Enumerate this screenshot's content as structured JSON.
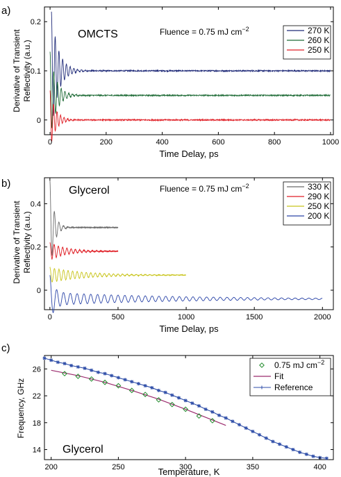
{
  "chart_data": [
    {
      "panel_label": "a)",
      "type": "line",
      "title": "OMCTS",
      "annotation": "Fluence = 0.75 mJ cm",
      "annotation_sup": "−2",
      "xlabel": "Time Delay, ps",
      "ylabel": [
        "Derivative of Transient",
        "Reflectivity (a.u.)"
      ],
      "xlim": [
        -20,
        1010
      ],
      "ylim": [
        -0.03,
        0.23
      ],
      "xticks": [
        0,
        200,
        400,
        600,
        800,
        1000
      ],
      "yticks": [
        0,
        0.1,
        0.2
      ],
      "ytick_labels": [
        "0",
        "0.1",
        "0.2"
      ],
      "grid": false,
      "legend": "top-right",
      "series": [
        {
          "name": "270 K",
          "color": "#1f2a78",
          "baseline": 0.1,
          "amp": 0.12,
          "freq": 0.075,
          "decay": 25,
          "start": 5,
          "end": 1000,
          "noise": 0.0025
        },
        {
          "name": "260 K",
          "color": "#1e6b36",
          "baseline": 0.05,
          "amp": 0.09,
          "freq": 0.075,
          "decay": 22,
          "start": 0,
          "end": 1000,
          "noise": 0.0025
        },
        {
          "name": "250 K",
          "color": "#e01f26",
          "baseline": 0.0,
          "amp": 0.06,
          "freq": 0.08,
          "decay": 20,
          "start": 0,
          "end": 1000,
          "noise": 0.0025
        }
      ]
    },
    {
      "panel_label": "b)",
      "type": "line",
      "title": "Glycerol",
      "annotation": "Fluence = 0.75 mJ cm",
      "annotation_sup": "−2",
      "xlabel": "Time Delay, ps",
      "ylabel": [
        "Derivative of Transient",
        "Reflectivity (a.u.)"
      ],
      "xlim": [
        -40,
        2080
      ],
      "ylim": [
        -0.09,
        0.52
      ],
      "xticks": [
        0,
        500,
        1000,
        1500,
        2000
      ],
      "yticks": [
        0,
        0.2,
        0.4
      ],
      "ytick_labels": [
        "0",
        "0.2",
        "0.4"
      ],
      "grid": false,
      "legend": "top-right",
      "series": [
        {
          "name": "330 K",
          "color": "#6b6b6b",
          "baseline": 0.29,
          "amp": 0.22,
          "freq": 0.03,
          "decay": 30,
          "start": 0,
          "end": 500,
          "noise": 0.002
        },
        {
          "name": "290 K",
          "color": "#e01f26",
          "baseline": 0.18,
          "amp": 0.04,
          "freq": 0.032,
          "decay": 120,
          "start": 0,
          "end": 500,
          "noise": 0.002
        },
        {
          "name": "250 K",
          "color": "#c8c41a",
          "baseline": 0.07,
          "amp": 0.035,
          "freq": 0.03,
          "decay": 250,
          "start": 0,
          "end": 1000,
          "noise": 0.002
        },
        {
          "name": "200 K",
          "color": "#2b45a8",
          "baseline": -0.04,
          "amp": 0.03,
          "freq": 0.02,
          "decay": 900,
          "start": 0,
          "end": 2000,
          "noise": 0.001
        }
      ]
    },
    {
      "panel_label": "c)",
      "type": "scatter",
      "title": "Glycerol",
      "xlabel": "Temperature, K",
      "ylabel": [
        "Frequency, GHz"
      ],
      "xlim": [
        195,
        410
      ],
      "ylim": [
        12.5,
        28
      ],
      "xticks": [
        200,
        250,
        300,
        350,
        400
      ],
      "yticks": [
        14,
        18,
        22,
        26
      ],
      "ytick_labels": [
        "14",
        "18",
        "22",
        "26"
      ],
      "grid": false,
      "legend": "top-right",
      "legend_entries": [
        {
          "label": "0.75 mJ cm",
          "sup": "−2"
        },
        {
          "label": "Fit"
        },
        {
          "label": "Reference"
        }
      ],
      "measured": {
        "color": "#1f8a2a",
        "x": [
          210,
          220,
          230,
          240,
          250,
          260,
          270,
          280,
          290,
          300,
          310,
          320
        ],
        "y": [
          25.3,
          24.9,
          24.5,
          24.0,
          23.5,
          22.8,
          22.2,
          21.4,
          20.7,
          20.0,
          19.0,
          18.3
        ]
      },
      "fit": {
        "color": "#9b2a6d",
        "x": [
          200,
          220,
          240,
          260,
          280,
          300,
          320,
          330
        ],
        "y": [
          25.8,
          25.0,
          24.0,
          22.8,
          21.5,
          20.0,
          18.4,
          17.6
        ]
      },
      "reference": {
        "color": "#2f4ea8",
        "x": [
          195,
          200,
          205,
          210,
          215,
          220,
          225,
          230,
          235,
          240,
          245,
          250,
          255,
          260,
          265,
          270,
          275,
          280,
          285,
          290,
          295,
          300,
          305,
          310,
          315,
          320,
          325,
          330,
          335,
          340,
          345,
          350,
          355,
          360,
          365,
          370,
          375,
          380,
          385,
          390,
          395,
          400,
          405
        ],
        "y": [
          27.6,
          27.3,
          27.0,
          26.8,
          26.5,
          26.3,
          26.1,
          25.8,
          25.5,
          25.3,
          25.0,
          24.7,
          24.4,
          24.1,
          23.8,
          23.5,
          23.2,
          22.8,
          22.5,
          22.1,
          21.7,
          21.3,
          20.9,
          20.5,
          20.0,
          19.6,
          19.1,
          18.7,
          18.2,
          17.7,
          17.2,
          16.7,
          16.2,
          15.7,
          15.2,
          14.8,
          14.4,
          14.0,
          13.6,
          13.3,
          13.0,
          12.8,
          12.7
        ]
      }
    }
  ]
}
